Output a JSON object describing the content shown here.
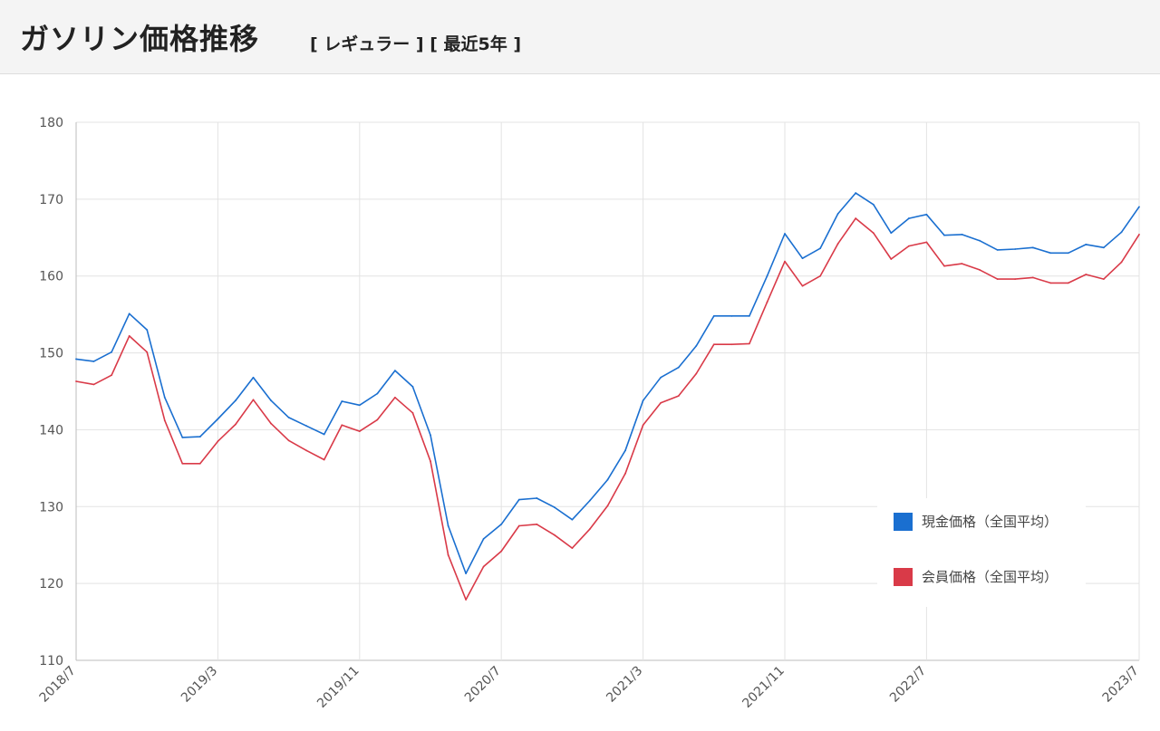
{
  "header": {
    "title": "ガソリン価格推移",
    "subtitle": "[ レギュラー ] [ 最近5年 ]"
  },
  "chart_data": {
    "type": "line",
    "title": "ガソリン価格推移",
    "xlabel": "",
    "ylabel": "",
    "ylim": [
      110,
      180
    ],
    "y_ticks": [
      110,
      120,
      130,
      140,
      150,
      160,
      170,
      180
    ],
    "x_tick_labels": [
      "2018/7",
      "2019/3",
      "2019/11",
      "2020/7",
      "2021/3",
      "2021/11",
      "2022/7",
      "2023/7"
    ],
    "x": [
      "2018/7",
      "2018/8",
      "2018/9",
      "2018/10",
      "2018/11",
      "2018/12",
      "2019/1",
      "2019/2",
      "2019/3",
      "2019/4",
      "2019/5",
      "2019/6",
      "2019/7",
      "2019/8",
      "2019/9",
      "2019/10",
      "2019/11",
      "2019/12",
      "2020/1",
      "2020/2",
      "2020/3",
      "2020/4",
      "2020/5",
      "2020/6",
      "2020/7",
      "2020/8",
      "2020/9",
      "2020/10",
      "2020/11",
      "2020/12",
      "2021/1",
      "2021/2",
      "2021/3",
      "2021/4",
      "2021/5",
      "2021/6",
      "2021/7",
      "2021/8",
      "2021/9",
      "2021/10",
      "2021/11",
      "2021/12",
      "2022/1",
      "2022/2",
      "2022/3",
      "2022/4",
      "2022/5",
      "2022/6",
      "2022/7",
      "2022/8",
      "2022/9",
      "2022/10",
      "2022/11",
      "2022/12",
      "2023/1",
      "2023/2",
      "2023/3",
      "2023/4",
      "2023/5",
      "2023/6",
      "2023/7"
    ],
    "series": [
      {
        "name": "現金価格（全国平均）",
        "color": "#1a6fd0",
        "values": [
          149.2,
          148.9,
          150.1,
          155.1,
          153.0,
          144.2,
          139.0,
          139.1,
          141.4,
          143.8,
          146.8,
          143.8,
          141.6,
          140.5,
          139.4,
          143.7,
          143.2,
          144.7,
          147.7,
          145.6,
          139.3,
          127.5,
          121.3,
          125.8,
          127.7,
          130.9,
          131.1,
          129.9,
          128.3,
          130.8,
          133.5,
          137.3,
          143.8,
          146.8,
          148.1,
          150.9,
          154.8,
          154.8,
          154.8,
          160.0,
          165.5,
          162.3,
          163.6,
          168.1,
          170.8,
          169.3,
          165.6,
          167.5,
          168.0,
          165.3,
          165.4,
          164.6,
          163.4,
          163.5,
          163.7,
          163.0,
          163.0,
          164.1,
          163.7,
          165.7,
          169.0
        ]
      },
      {
        "name": "会員価格（全国平均）",
        "color": "#d93a48",
        "values": [
          146.3,
          145.9,
          147.1,
          152.2,
          150.1,
          141.2,
          135.6,
          135.6,
          138.5,
          140.7,
          143.9,
          140.8,
          138.6,
          137.3,
          136.1,
          140.6,
          139.8,
          141.3,
          144.2,
          142.2,
          135.9,
          123.7,
          117.9,
          122.2,
          124.2,
          127.5,
          127.7,
          126.3,
          124.6,
          127.1,
          130.1,
          134.3,
          140.6,
          143.5,
          144.4,
          147.3,
          151.1,
          151.1,
          151.2,
          156.6,
          161.9,
          158.7,
          160.0,
          164.2,
          167.5,
          165.6,
          162.2,
          163.9,
          164.4,
          161.3,
          161.6,
          160.8,
          159.6,
          159.6,
          159.8,
          159.1,
          159.1,
          160.2,
          159.6,
          161.8,
          165.4
        ]
      }
    ],
    "legend_position": "right",
    "grid": true
  }
}
